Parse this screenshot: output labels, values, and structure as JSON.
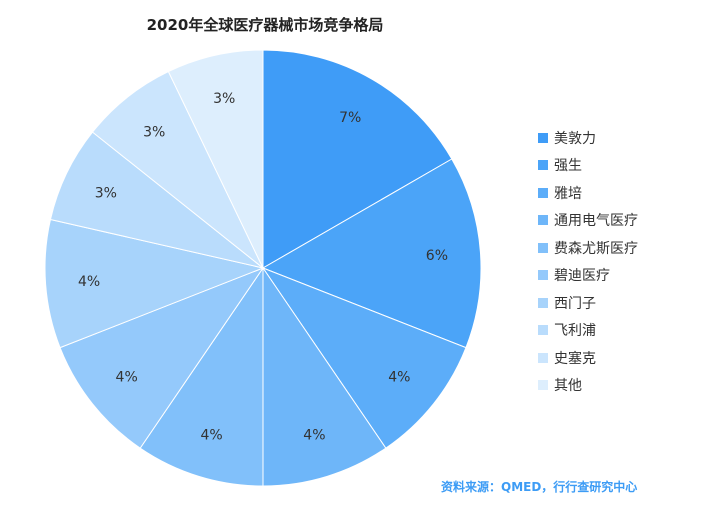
{
  "chart_data": {
    "type": "pie",
    "title": "2020年全球医疗器械市场竞争格局",
    "categories": [
      "美敦力",
      "强生",
      "雅培",
      "通用电气医疗",
      "费森尤斯医疗",
      "碧迪医疗",
      "西门子",
      "飞利浦",
      "史塞克",
      "其他"
    ],
    "values": [
      7,
      6,
      4,
      4,
      4,
      4,
      4,
      3,
      3,
      3
    ],
    "labels": [
      "7%",
      "6%",
      "4%",
      "4%",
      "4%",
      "4%",
      "4%",
      "3%",
      "3%",
      "3%"
    ],
    "colors": [
      "#3f9cf7",
      "#4ba4f8",
      "#5cadf9",
      "#6eb6f9",
      "#81c0fa",
      "#94c9fb",
      "#a7d3fb",
      "#b9dcfc",
      "#cbe5fd",
      "#ddeefd"
    ],
    "legend_position": "right"
  },
  "source": "资料来源：QMED，行行查研究中心"
}
